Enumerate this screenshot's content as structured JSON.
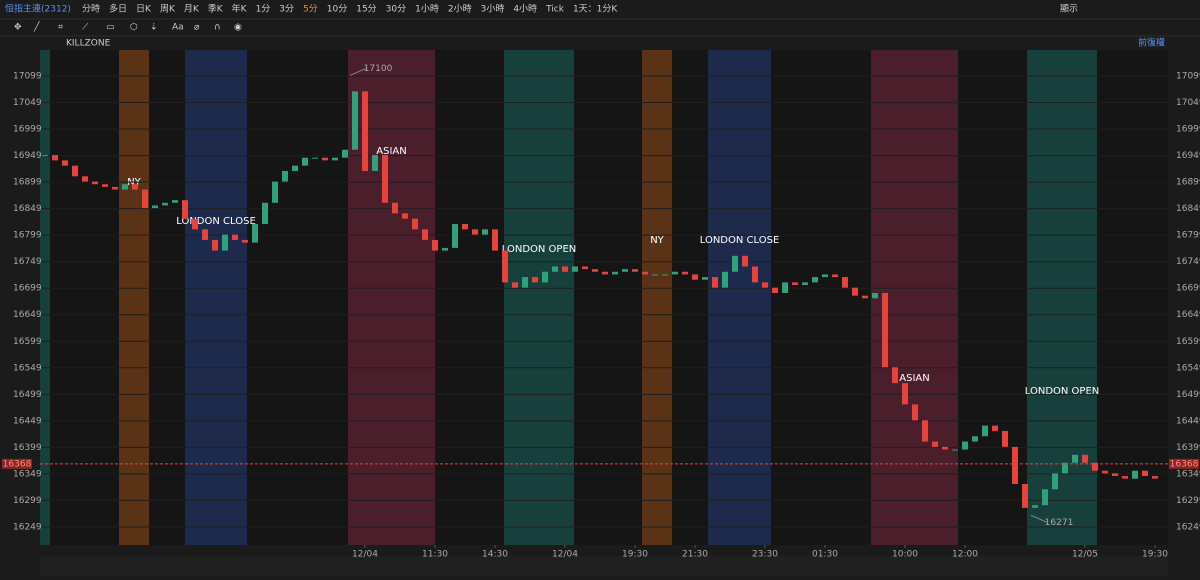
{
  "toolbar": {
    "symbol": "恒指主連(2312)",
    "periods": [
      "分時",
      "多日",
      "日K",
      "周K",
      "月K",
      "季K",
      "年K",
      "1分",
      "3分",
      "5分",
      "10分",
      "15分",
      "30分",
      "1小時",
      "2小時",
      "3小時",
      "4小時",
      "Tick",
      "1天：1分K"
    ],
    "active": "5分",
    "display": "顯示",
    "indicator": "KILLZONE",
    "adjust": "前復權"
  },
  "chart_data": {
    "type": "candlestick",
    "categories": [
      null,
      null,
      null,
      null,
      null,
      null,
      null,
      null,
      null,
      null,
      null,
      null,
      null,
      null,
      null,
      null,
      null,
      null,
      null,
      null,
      null,
      null,
      null,
      null,
      null,
      null,
      null,
      null,
      null,
      null,
      null,
      null,
      "12/04",
      null,
      null,
      null,
      null,
      null,
      null,
      "11:30",
      null,
      null,
      null,
      null,
      null,
      "14:30",
      null,
      null,
      null,
      null,
      null,
      null,
      "12/04",
      null,
      null,
      null,
      null,
      null,
      null,
      "19:30",
      null,
      null,
      null,
      null,
      null,
      "21:30",
      null,
      null,
      null,
      null,
      null,
      null,
      "23:30",
      null,
      null,
      null,
      null,
      null,
      "01:30",
      null,
      null,
      null,
      null,
      null,
      null,
      null,
      "10:00",
      null,
      null,
      null,
      null,
      null,
      "12:00",
      null,
      null,
      null,
      null,
      null,
      null,
      null,
      null,
      null,
      null,
      null,
      "12/05",
      null,
      null,
      null,
      null,
      null,
      null,
      "19:30"
    ],
    "values": [
      16950,
      16940,
      16930,
      16910,
      16900,
      16895,
      16890,
      16885,
      16895,
      16885,
      16850,
      16855,
      16860,
      16865,
      16830,
      16810,
      16790,
      16770,
      16800,
      16790,
      16785,
      16820,
      16860,
      16900,
      16920,
      16930,
      16945,
      16945,
      16940,
      16945,
      16960,
      17070,
      16920,
      16950,
      16860,
      16840,
      16830,
      16810,
      16790,
      16770,
      16775,
      16820,
      16810,
      16800,
      16810,
      16770,
      16710,
      16700,
      16720,
      16710,
      16730,
      16740,
      16730,
      16740,
      16735,
      16730,
      16725,
      16730,
      16735,
      16730,
      16725,
      16725,
      16725,
      16730,
      16725,
      16715,
      16720,
      16700,
      16730,
      16760,
      16740,
      16710,
      16700,
      16690,
      16710,
      16705,
      16710,
      16720,
      16725,
      16720,
      16700,
      16685,
      16680,
      16690,
      16550,
      16520,
      16480,
      16450,
      16410,
      16400,
      16395,
      16395,
      16410,
      16420,
      16440,
      16430,
      16400,
      16330,
      16285,
      16290,
      16320,
      16350,
      16370,
      16385,
      16370,
      16355,
      16350,
      16345,
      16340,
      16355,
      16345,
      16340
    ],
    "up_color": "#2ea37a",
    "down_color": "#e8433b",
    "ylim": [
      16215,
      17148
    ],
    "yticks": [
      16249,
      16299,
      16349,
      16399,
      16449,
      16499,
      16549,
      16599,
      16649,
      16699,
      16749,
      16799,
      16849,
      16899,
      16949,
      16999,
      17049,
      17099
    ],
    "grid": true,
    "zones": [
      {
        "label": null,
        "start": -0.5,
        "end": 0.5,
        "color": "#17403d"
      },
      {
        "label": "NY",
        "start": 7.4,
        "end": 10.4,
        "color": "#5a3316"
      },
      {
        "label": "LONDON  CLOSE",
        "start": 14,
        "end": 20.2,
        "color": "#1e2a4c"
      },
      {
        "label": "ASIAN",
        "start": 30.3,
        "end": 39,
        "color": "#4a1e2b"
      },
      {
        "label": "LONDON OPEN",
        "start": 45.9,
        "end": 52.9,
        "color": "#17403d"
      },
      {
        "label": "NY",
        "start": 59.7,
        "end": 62.7,
        "color": "#5a3316"
      },
      {
        "label": "LONDON  CLOSE",
        "start": 66.3,
        "end": 72.6,
        "color": "#1e2a4c"
      },
      {
        "label": "ASIAN",
        "start": 82.6,
        "end": 91.3,
        "color": "#4a1e2b"
      },
      {
        "label": "LONDON OPEN",
        "start": 98.2,
        "end": 105.2,
        "color": "#17403d"
      }
    ],
    "annotations": [
      17100,
      16271
    ],
    "last_price": 16368
  }
}
